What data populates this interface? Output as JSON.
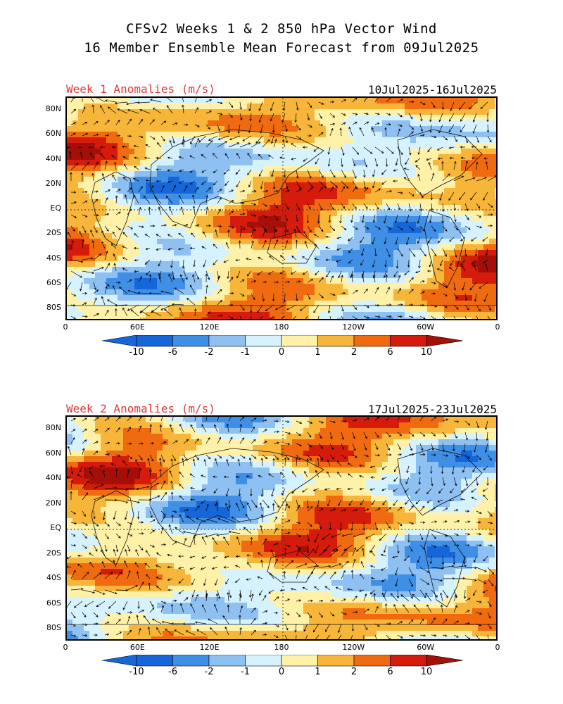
{
  "header": {
    "line1": "CFSv2 Weeks 1 & 2 850 hPa Vector Wind",
    "line2": "16 Member Ensemble Mean Forecast from 09Jul2025"
  },
  "panels": [
    {
      "label": "Week 1 Anomalies (m/s)",
      "date_range": "10Jul2025-16Jul2025"
    },
    {
      "label": "Week 2 Anomalies (m/s)",
      "date_range": "17Jul2025-23Jul2025"
    }
  ],
  "lat_ticks": [
    "80N",
    "60N",
    "40N",
    "20N",
    "EQ",
    "20S",
    "40S",
    "60S",
    "80S"
  ],
  "lon_ticks": [
    "0",
    "60E",
    "120E",
    "180",
    "120W",
    "60W",
    "0"
  ],
  "colorbar": {
    "labels": [
      "-10",
      "-6",
      "-2",
      "-1",
      "0",
      "1",
      "2",
      "6",
      "10"
    ],
    "colors": [
      "#1766d9",
      "#3f8fe6",
      "#8ec1f2",
      "#d6f2ff",
      "#fff2a8",
      "#f7b53a",
      "#f06a10",
      "#d41b0c",
      "#a50f08"
    ]
  },
  "map_colors": {
    "land_outline": "#111111",
    "arrow": "#000000"
  }
}
